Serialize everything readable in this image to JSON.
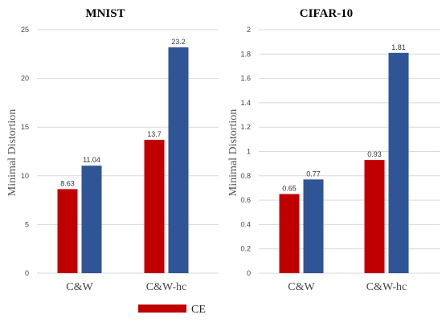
{
  "chart_data": [
    {
      "type": "bar",
      "title": "MNIST",
      "ylabel": "Minimal Distortion",
      "xlabel": "",
      "categories": [
        "C&W",
        "C&W-hc"
      ],
      "series": [
        {
          "name": "CE",
          "color": "#c00000",
          "values": [
            8.63,
            13.7
          ],
          "labels": [
            "8.63",
            "13.7"
          ]
        },
        {
          "color": "#2f5597",
          "values": [
            11.04,
            23.2
          ],
          "labels": [
            "11.04",
            "23.2"
          ]
        }
      ],
      "ylim": [
        0,
        25
      ],
      "yticks": [
        0,
        5,
        10,
        15,
        20,
        25
      ],
      "ytick_labels": [
        "0",
        "5",
        "10",
        "15",
        "20",
        "25"
      ],
      "grid": true
    },
    {
      "type": "bar",
      "title": "CIFAR-10",
      "ylabel": "Minimal Distortion",
      "xlabel": "",
      "categories": [
        "C&W",
        "C&W-hc"
      ],
      "series": [
        {
          "name": "CE",
          "color": "#c00000",
          "values": [
            0.65,
            0.93
          ],
          "labels": [
            "0.65",
            "0.93"
          ]
        },
        {
          "color": "#2f5597",
          "values": [
            0.77,
            1.81
          ],
          "labels": [
            "0.77",
            "1.81"
          ]
        }
      ],
      "ylim": [
        0,
        2
      ],
      "yticks": [
        0,
        0.2,
        0.4,
        0.6,
        0.8,
        1,
        1.2,
        1.4,
        1.6,
        1.8,
        2
      ],
      "ytick_labels": [
        "0",
        "0.2",
        "0.4",
        "0.6",
        "0.8",
        "1",
        "1.2",
        "1.4",
        "1.6",
        "1.8",
        "2"
      ],
      "grid": true
    }
  ],
  "legend": {
    "placement": "bottom",
    "items": [
      {
        "label": "CE",
        "color": "#c00000"
      }
    ]
  }
}
